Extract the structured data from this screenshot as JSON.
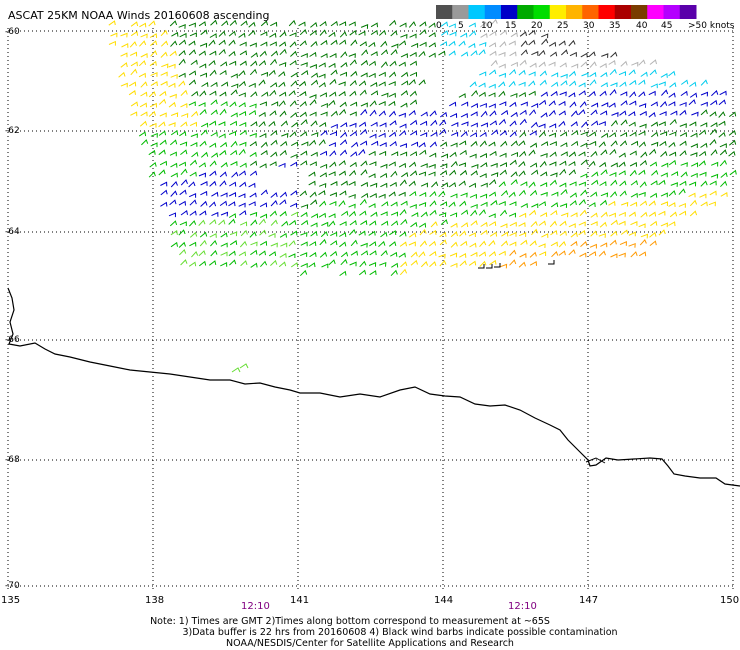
{
  "title": "ASCAT 25KM NOAA Winds 20160608 ascending",
  "legend": {
    "labels": [
      "0",
      "5",
      "10",
      "15",
      "20",
      "25",
      "30",
      "35",
      "40",
      "45",
      ">50 knots"
    ],
    "colors": [
      "#505050",
      "#9a9a9a",
      "#00c8ff",
      "#008cff",
      "#0000c8",
      "#00aa00",
      "#00dd00",
      "#ffee00",
      "#ffb400",
      "#ff6400",
      "#ff0000",
      "#aa0000",
      "#7a3c00",
      "#ff00ff",
      "#b400ff",
      "#5a00aa"
    ]
  },
  "latitudes": [
    "-60",
    "-62",
    "-64",
    "-66",
    "-68",
    "-70"
  ],
  "longitudes": [
    "135",
    "138",
    "141",
    "144",
    "147",
    "150"
  ],
  "times": [
    "12:10",
    "12:10"
  ],
  "notes": [
    "Note: 1) Times are GMT 2)Times along bottom correspond to measurement at ~65S",
    "3)Data buffer is 22 hrs from 20160608 4) Black wind barbs indicate possible contamination",
    "NOAA/NESDIS/Center for Satellite Applications and Research"
  ],
  "wind_colors": {
    "light_gray": "#b4b4b4",
    "dark_gray": "#303030",
    "cyan": "#00ccee",
    "blue": "#0000cc",
    "dark_green": "#007700",
    "green": "#00bb00",
    "light_green": "#66dd33",
    "yellow": "#ffdd00",
    "orange": "#ff9900",
    "red_orange": "#ff5500",
    "black": "#000000"
  }
}
